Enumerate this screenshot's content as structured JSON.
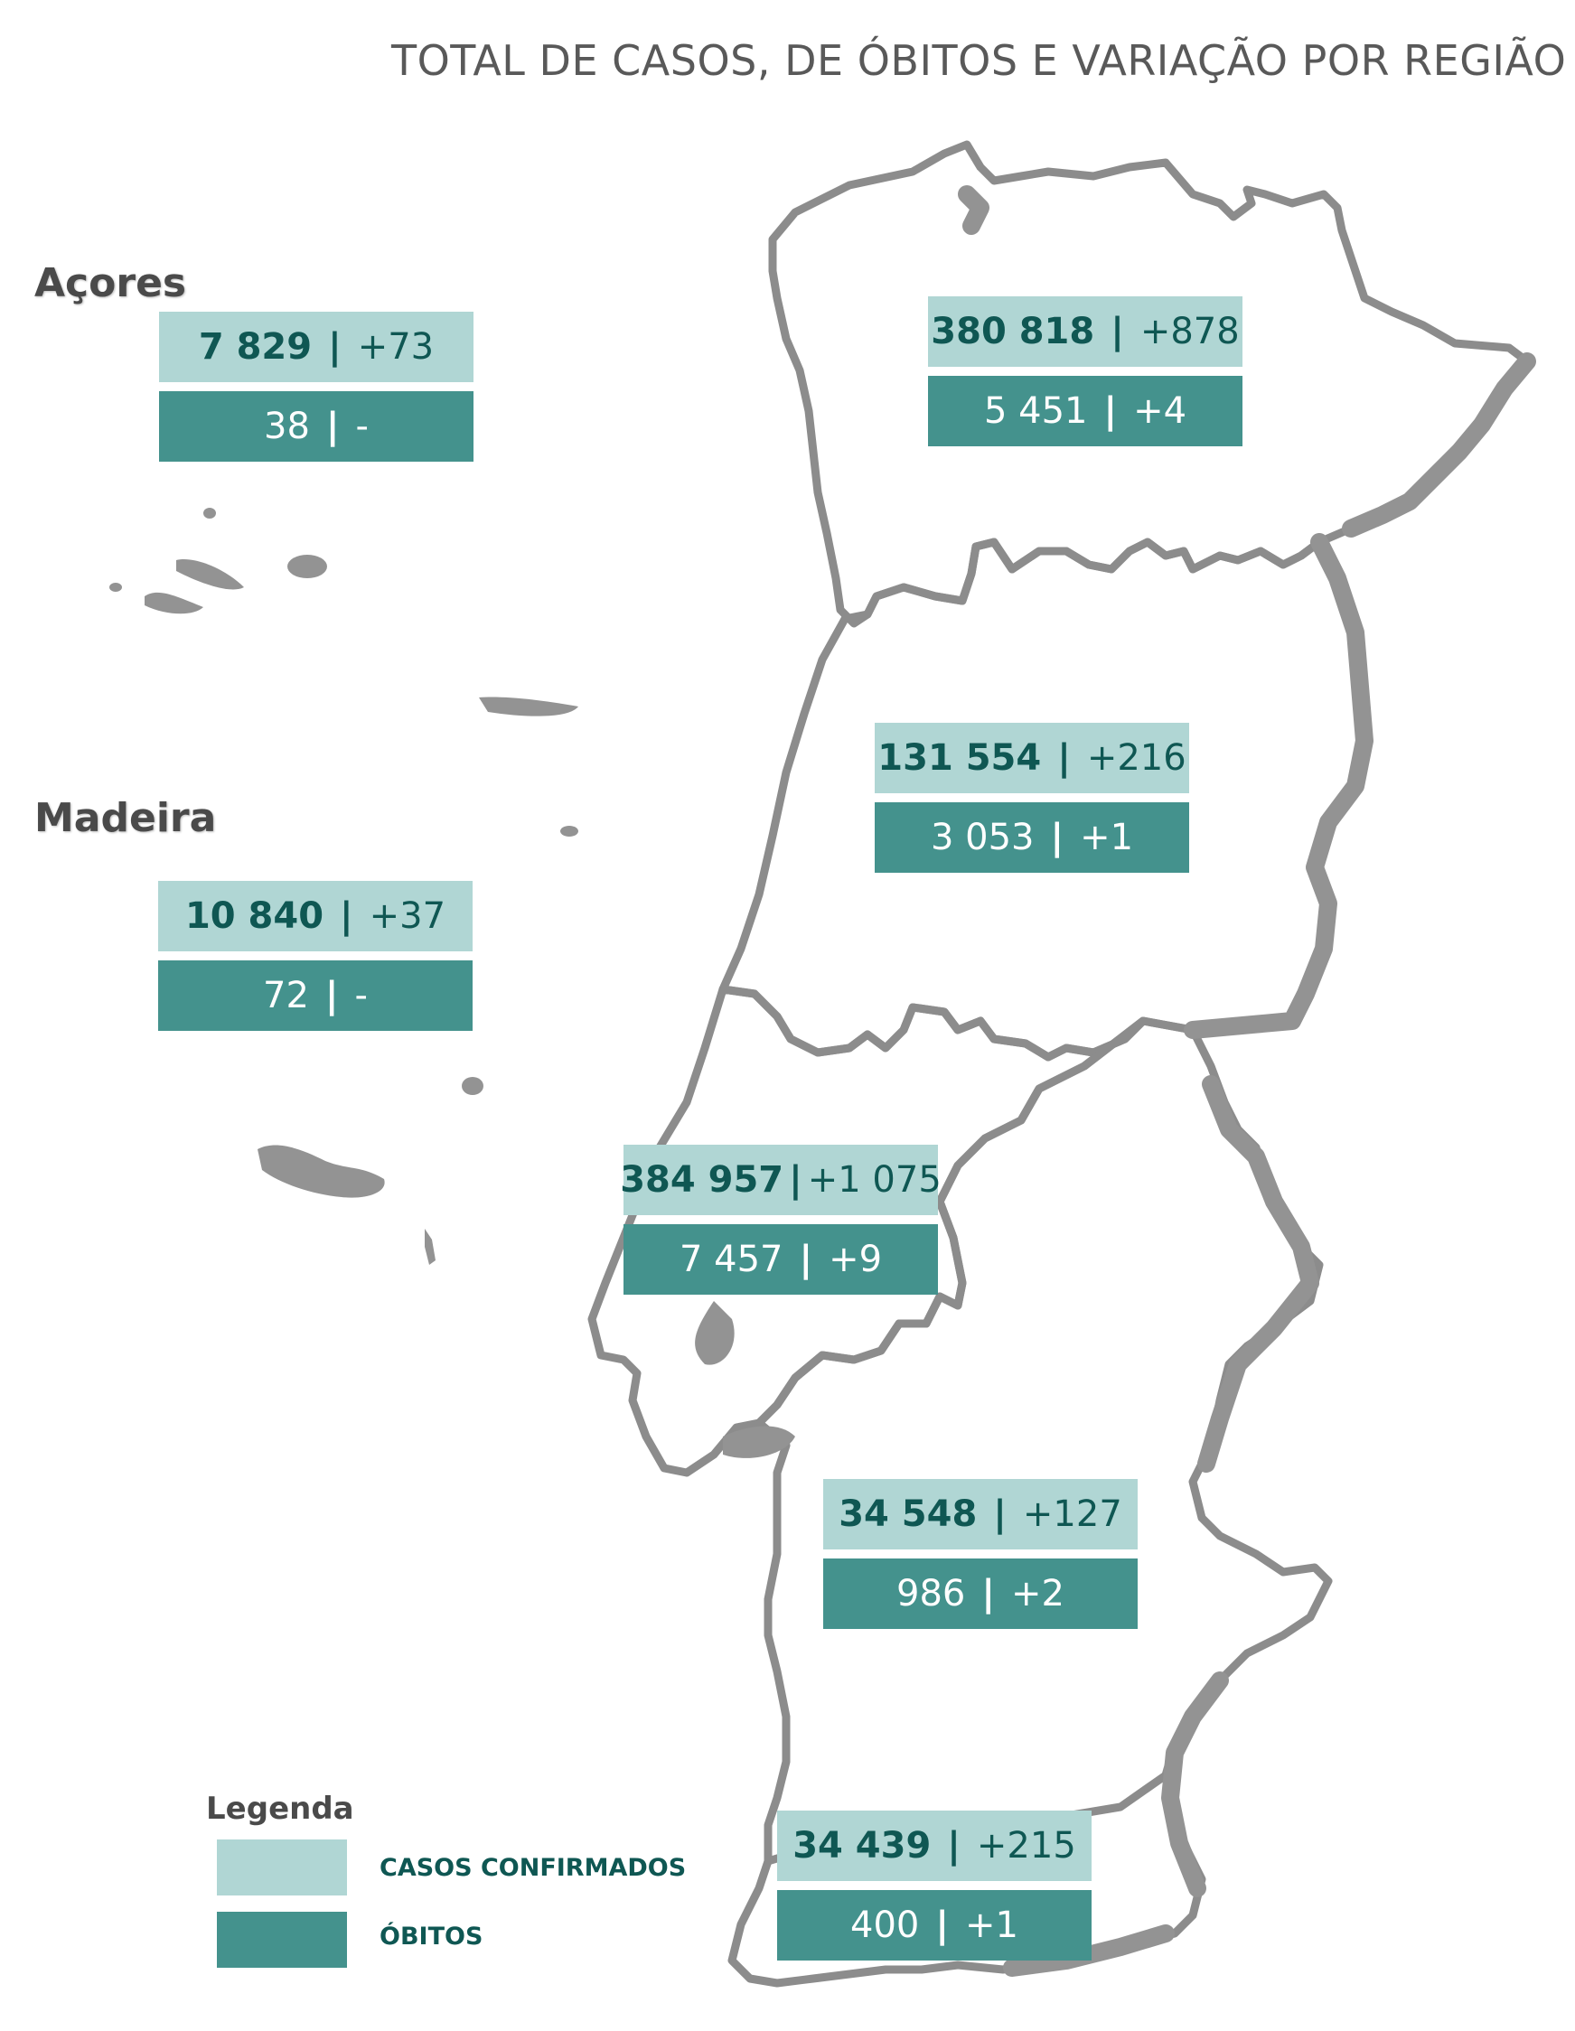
{
  "title": "TOTAL DE CASOS, DE ÓBITOS E VARIAÇÃO POR REGIÃO",
  "colors": {
    "cases_fill": "#b0d6d4",
    "deaths_fill": "#44928d",
    "map_stroke": "#8c8c8c"
  },
  "islands": {
    "azores_label": "Açores",
    "madeira_label": "Madeira"
  },
  "regions": [
    {
      "id": "acores",
      "cases": "7 829",
      "cases_change": "+73",
      "deaths": "38",
      "deaths_change": "-"
    },
    {
      "id": "madeira",
      "cases": "10 840",
      "cases_change": "+37",
      "deaths": "72",
      "deaths_change": "-"
    },
    {
      "id": "norte",
      "cases": "380 818",
      "cases_change": "+878",
      "deaths": "5 451",
      "deaths_change": "+4"
    },
    {
      "id": "centro",
      "cases": "131 554",
      "cases_change": "+216",
      "deaths": "3 053",
      "deaths_change": "+1"
    },
    {
      "id": "lvt",
      "cases": "384 957",
      "cases_change": "+1 075",
      "deaths": "7 457",
      "deaths_change": "+9"
    },
    {
      "id": "alentejo",
      "cases": "34 548",
      "cases_change": "+127",
      "deaths": "986",
      "deaths_change": "+2"
    },
    {
      "id": "algarve",
      "cases": "34 439",
      "cases_change": "+215",
      "deaths": "400",
      "deaths_change": "+1"
    }
  ],
  "legend": {
    "title": "Legenda",
    "cases_label": "CASOS CONFIRMADOS",
    "deaths_label": "ÓBITOS"
  }
}
